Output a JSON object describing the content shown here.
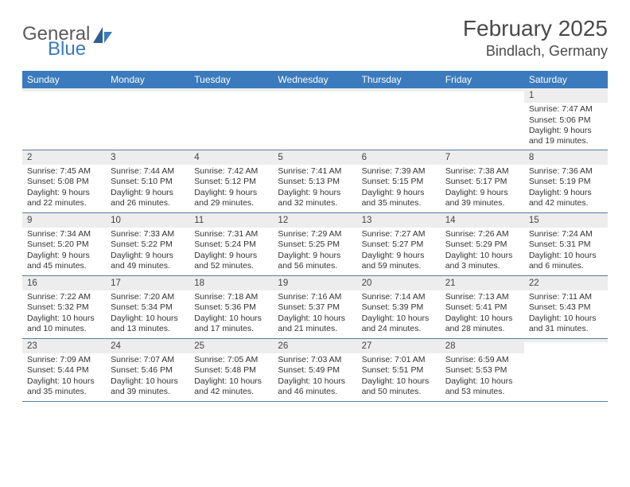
{
  "brand": {
    "word1": "General",
    "word2": "Blue"
  },
  "title": "February 2025",
  "location": "Bindlach, Germany",
  "colors": {
    "header_bg": "#3a7abd",
    "header_text": "#ffffff",
    "daynum_bg": "#ededed",
    "divider": "#5a7aa0",
    "brand_gray": "#5a5a5a",
    "brand_blue": "#3a7abd"
  },
  "day_headers": [
    "Sunday",
    "Monday",
    "Tuesday",
    "Wednesday",
    "Thursday",
    "Friday",
    "Saturday"
  ],
  "weeks": [
    [
      {
        "n": "",
        "sunrise": "",
        "sunset": "",
        "daylight": ""
      },
      {
        "n": "",
        "sunrise": "",
        "sunset": "",
        "daylight": ""
      },
      {
        "n": "",
        "sunrise": "",
        "sunset": "",
        "daylight": ""
      },
      {
        "n": "",
        "sunrise": "",
        "sunset": "",
        "daylight": ""
      },
      {
        "n": "",
        "sunrise": "",
        "sunset": "",
        "daylight": ""
      },
      {
        "n": "",
        "sunrise": "",
        "sunset": "",
        "daylight": ""
      },
      {
        "n": "1",
        "sunrise": "Sunrise: 7:47 AM",
        "sunset": "Sunset: 5:06 PM",
        "daylight": "Daylight: 9 hours and 19 minutes."
      }
    ],
    [
      {
        "n": "2",
        "sunrise": "Sunrise: 7:45 AM",
        "sunset": "Sunset: 5:08 PM",
        "daylight": "Daylight: 9 hours and 22 minutes."
      },
      {
        "n": "3",
        "sunrise": "Sunrise: 7:44 AM",
        "sunset": "Sunset: 5:10 PM",
        "daylight": "Daylight: 9 hours and 26 minutes."
      },
      {
        "n": "4",
        "sunrise": "Sunrise: 7:42 AM",
        "sunset": "Sunset: 5:12 PM",
        "daylight": "Daylight: 9 hours and 29 minutes."
      },
      {
        "n": "5",
        "sunrise": "Sunrise: 7:41 AM",
        "sunset": "Sunset: 5:13 PM",
        "daylight": "Daylight: 9 hours and 32 minutes."
      },
      {
        "n": "6",
        "sunrise": "Sunrise: 7:39 AM",
        "sunset": "Sunset: 5:15 PM",
        "daylight": "Daylight: 9 hours and 35 minutes."
      },
      {
        "n": "7",
        "sunrise": "Sunrise: 7:38 AM",
        "sunset": "Sunset: 5:17 PM",
        "daylight": "Daylight: 9 hours and 39 minutes."
      },
      {
        "n": "8",
        "sunrise": "Sunrise: 7:36 AM",
        "sunset": "Sunset: 5:19 PM",
        "daylight": "Daylight: 9 hours and 42 minutes."
      }
    ],
    [
      {
        "n": "9",
        "sunrise": "Sunrise: 7:34 AM",
        "sunset": "Sunset: 5:20 PM",
        "daylight": "Daylight: 9 hours and 45 minutes."
      },
      {
        "n": "10",
        "sunrise": "Sunrise: 7:33 AM",
        "sunset": "Sunset: 5:22 PM",
        "daylight": "Daylight: 9 hours and 49 minutes."
      },
      {
        "n": "11",
        "sunrise": "Sunrise: 7:31 AM",
        "sunset": "Sunset: 5:24 PM",
        "daylight": "Daylight: 9 hours and 52 minutes."
      },
      {
        "n": "12",
        "sunrise": "Sunrise: 7:29 AM",
        "sunset": "Sunset: 5:25 PM",
        "daylight": "Daylight: 9 hours and 56 minutes."
      },
      {
        "n": "13",
        "sunrise": "Sunrise: 7:27 AM",
        "sunset": "Sunset: 5:27 PM",
        "daylight": "Daylight: 9 hours and 59 minutes."
      },
      {
        "n": "14",
        "sunrise": "Sunrise: 7:26 AM",
        "sunset": "Sunset: 5:29 PM",
        "daylight": "Daylight: 10 hours and 3 minutes."
      },
      {
        "n": "15",
        "sunrise": "Sunrise: 7:24 AM",
        "sunset": "Sunset: 5:31 PM",
        "daylight": "Daylight: 10 hours and 6 minutes."
      }
    ],
    [
      {
        "n": "16",
        "sunrise": "Sunrise: 7:22 AM",
        "sunset": "Sunset: 5:32 PM",
        "daylight": "Daylight: 10 hours and 10 minutes."
      },
      {
        "n": "17",
        "sunrise": "Sunrise: 7:20 AM",
        "sunset": "Sunset: 5:34 PM",
        "daylight": "Daylight: 10 hours and 13 minutes."
      },
      {
        "n": "18",
        "sunrise": "Sunrise: 7:18 AM",
        "sunset": "Sunset: 5:36 PM",
        "daylight": "Daylight: 10 hours and 17 minutes."
      },
      {
        "n": "19",
        "sunrise": "Sunrise: 7:16 AM",
        "sunset": "Sunset: 5:37 PM",
        "daylight": "Daylight: 10 hours and 21 minutes."
      },
      {
        "n": "20",
        "sunrise": "Sunrise: 7:14 AM",
        "sunset": "Sunset: 5:39 PM",
        "daylight": "Daylight: 10 hours and 24 minutes."
      },
      {
        "n": "21",
        "sunrise": "Sunrise: 7:13 AM",
        "sunset": "Sunset: 5:41 PM",
        "daylight": "Daylight: 10 hours and 28 minutes."
      },
      {
        "n": "22",
        "sunrise": "Sunrise: 7:11 AM",
        "sunset": "Sunset: 5:43 PM",
        "daylight": "Daylight: 10 hours and 31 minutes."
      }
    ],
    [
      {
        "n": "23",
        "sunrise": "Sunrise: 7:09 AM",
        "sunset": "Sunset: 5:44 PM",
        "daylight": "Daylight: 10 hours and 35 minutes."
      },
      {
        "n": "24",
        "sunrise": "Sunrise: 7:07 AM",
        "sunset": "Sunset: 5:46 PM",
        "daylight": "Daylight: 10 hours and 39 minutes."
      },
      {
        "n": "25",
        "sunrise": "Sunrise: 7:05 AM",
        "sunset": "Sunset: 5:48 PM",
        "daylight": "Daylight: 10 hours and 42 minutes."
      },
      {
        "n": "26",
        "sunrise": "Sunrise: 7:03 AM",
        "sunset": "Sunset: 5:49 PM",
        "daylight": "Daylight: 10 hours and 46 minutes."
      },
      {
        "n": "27",
        "sunrise": "Sunrise: 7:01 AM",
        "sunset": "Sunset: 5:51 PM",
        "daylight": "Daylight: 10 hours and 50 minutes."
      },
      {
        "n": "28",
        "sunrise": "Sunrise: 6:59 AM",
        "sunset": "Sunset: 5:53 PM",
        "daylight": "Daylight: 10 hours and 53 minutes."
      },
      {
        "n": "",
        "sunrise": "",
        "sunset": "",
        "daylight": ""
      }
    ]
  ]
}
